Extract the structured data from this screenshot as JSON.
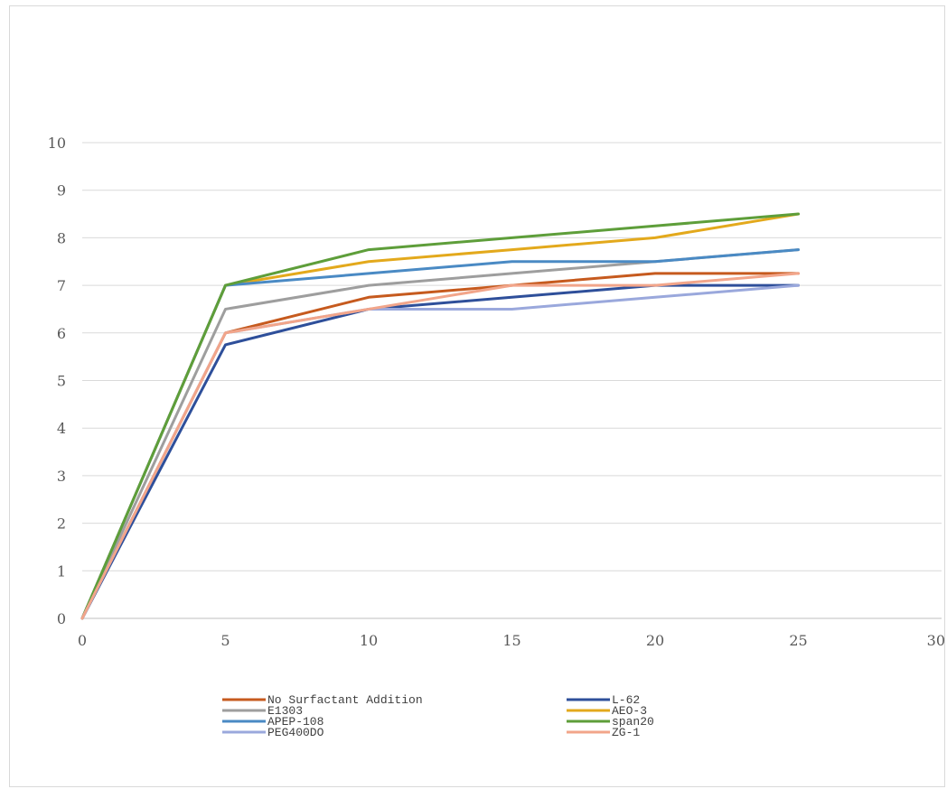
{
  "chart_data": {
    "type": "line",
    "title": "",
    "xlabel": "",
    "ylabel": "",
    "xlim": [
      0,
      30
    ],
    "ylim": [
      0,
      10
    ],
    "x_ticks": [
      0,
      5,
      10,
      15,
      20,
      25,
      30
    ],
    "y_ticks": [
      0,
      1,
      2,
      3,
      4,
      5,
      6,
      7,
      8,
      9,
      10
    ],
    "grid": "horizontal",
    "legend_position": "bottom",
    "x": [
      0,
      5,
      10,
      15,
      20,
      25
    ],
    "series": [
      {
        "name": "No Surfactant Addition",
        "color": "#C65A1E",
        "values": [
          0,
          6.0,
          6.75,
          7.0,
          7.25,
          7.25
        ]
      },
      {
        "name": "L-62",
        "color": "#2E4F9A",
        "values": [
          0,
          5.75,
          6.5,
          6.75,
          7.0,
          7.0
        ]
      },
      {
        "name": "E1303",
        "color": "#9E9E9E",
        "values": [
          0,
          6.5,
          7.0,
          7.25,
          7.5,
          7.75
        ]
      },
      {
        "name": "AEO-3",
        "color": "#E3A91C",
        "values": [
          0,
          7.0,
          7.5,
          7.75,
          8.0,
          8.5
        ]
      },
      {
        "name": "APEP-108",
        "color": "#4A8AC4",
        "values": [
          0,
          7.0,
          7.25,
          7.5,
          7.5,
          7.75
        ]
      },
      {
        "name": "span20",
        "color": "#5E9E3A",
        "values": [
          0,
          7.0,
          7.75,
          8.0,
          8.25,
          8.5
        ]
      },
      {
        "name": "PEG400DO",
        "color": "#9AA8DC",
        "values": [
          0,
          6.0,
          6.5,
          6.5,
          6.75,
          7.0
        ]
      },
      {
        "name": "ZG-1",
        "color": "#F2A58A",
        "values": [
          0,
          6.0,
          6.5,
          7.0,
          7.0,
          7.25
        ]
      }
    ]
  }
}
